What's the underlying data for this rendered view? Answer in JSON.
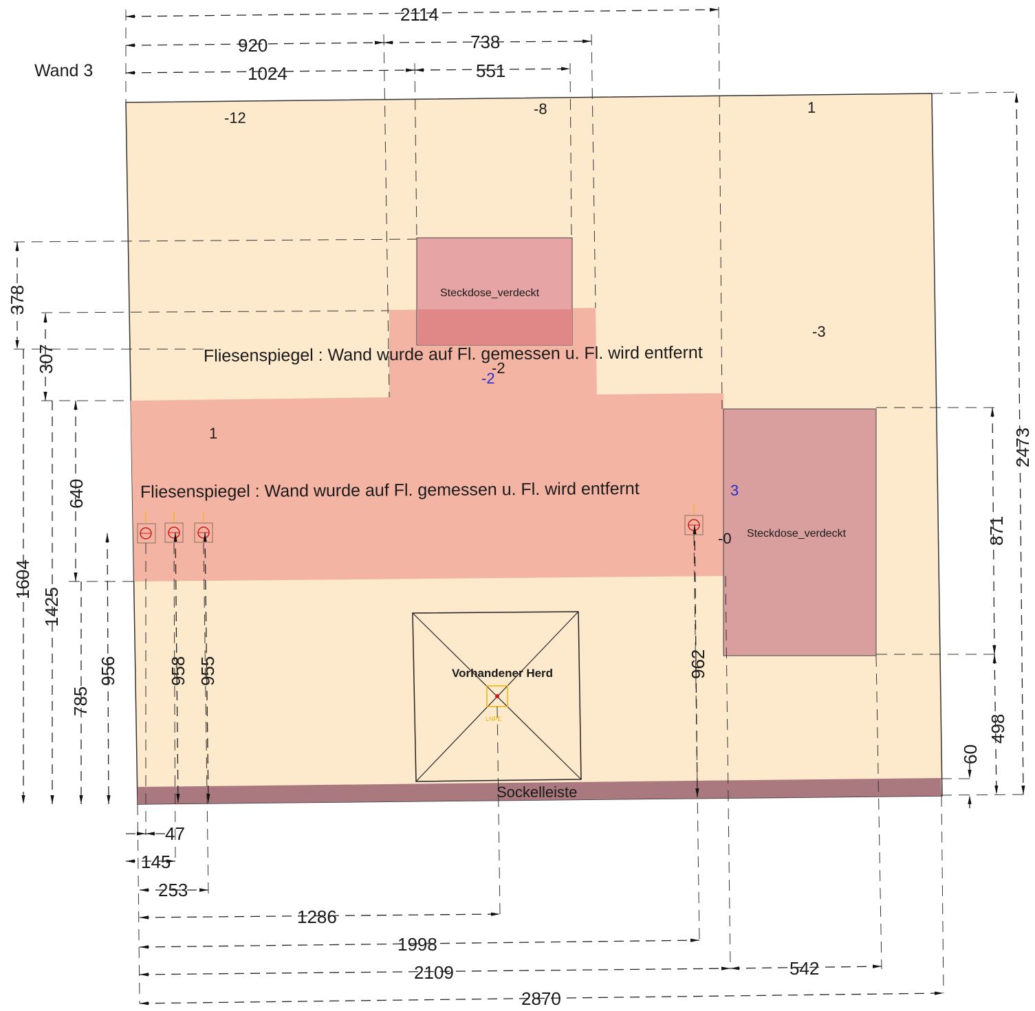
{
  "wall": {
    "title": "Wand 3",
    "colors": {
      "wall": "#fde9cc",
      "tile_mirror": "#f4b4a4",
      "socket_hidden": "#e7a4a4",
      "socket_overlap": "#e08888",
      "socket_right": "#d89f9e",
      "baseboard": "#a9797f",
      "outlet_ring": "#cc1a1a",
      "marker_yellow": "#f0b400",
      "blue_text": "#2b2bc8"
    }
  },
  "areas": {
    "tile_label_1": "Fliesenspiegel : Wand wurde auf Fl. gemessen u. Fl. wird entfernt",
    "tile_label_2": "Fliesenspiegel : Wand wurde auf Fl. gemessen u. Fl. wird entfernt",
    "socket_top_label": "Steckdose_verdeckt",
    "socket_right_label": "Steckdose_verdeckt",
    "stove_label": "Vorhandener Herd",
    "stove_sub_label": "LNPE",
    "baseboard_label": "Sockelleiste"
  },
  "height_marks": {
    "h1": "-12",
    "h2": "-8",
    "h3": "1",
    "h4": "-3",
    "h5": "-2",
    "h6": "-2",
    "h7": "1",
    "h8": "3",
    "h9": "-0"
  },
  "dimensions": {
    "top": {
      "d2114": "2114",
      "d920": "920",
      "d738": "738",
      "d1024": "1024",
      "d551": "551"
    },
    "left": {
      "d378": "378",
      "d307": "307",
      "d640": "640",
      "d1604": "1604",
      "d1425": "1425",
      "d785": "785",
      "d956": "956"
    },
    "inner": {
      "d958": "958",
      "d955": "955",
      "d962": "962"
    },
    "right": {
      "d2473": "2473",
      "d871": "871",
      "d498": "498",
      "d60": "60"
    },
    "bottom": {
      "d47": "47",
      "d145": "145",
      "d253": "253",
      "d1286": "1286",
      "d1998": "1998",
      "d2109": "2109",
      "d542": "542",
      "d2870": "2870"
    }
  }
}
